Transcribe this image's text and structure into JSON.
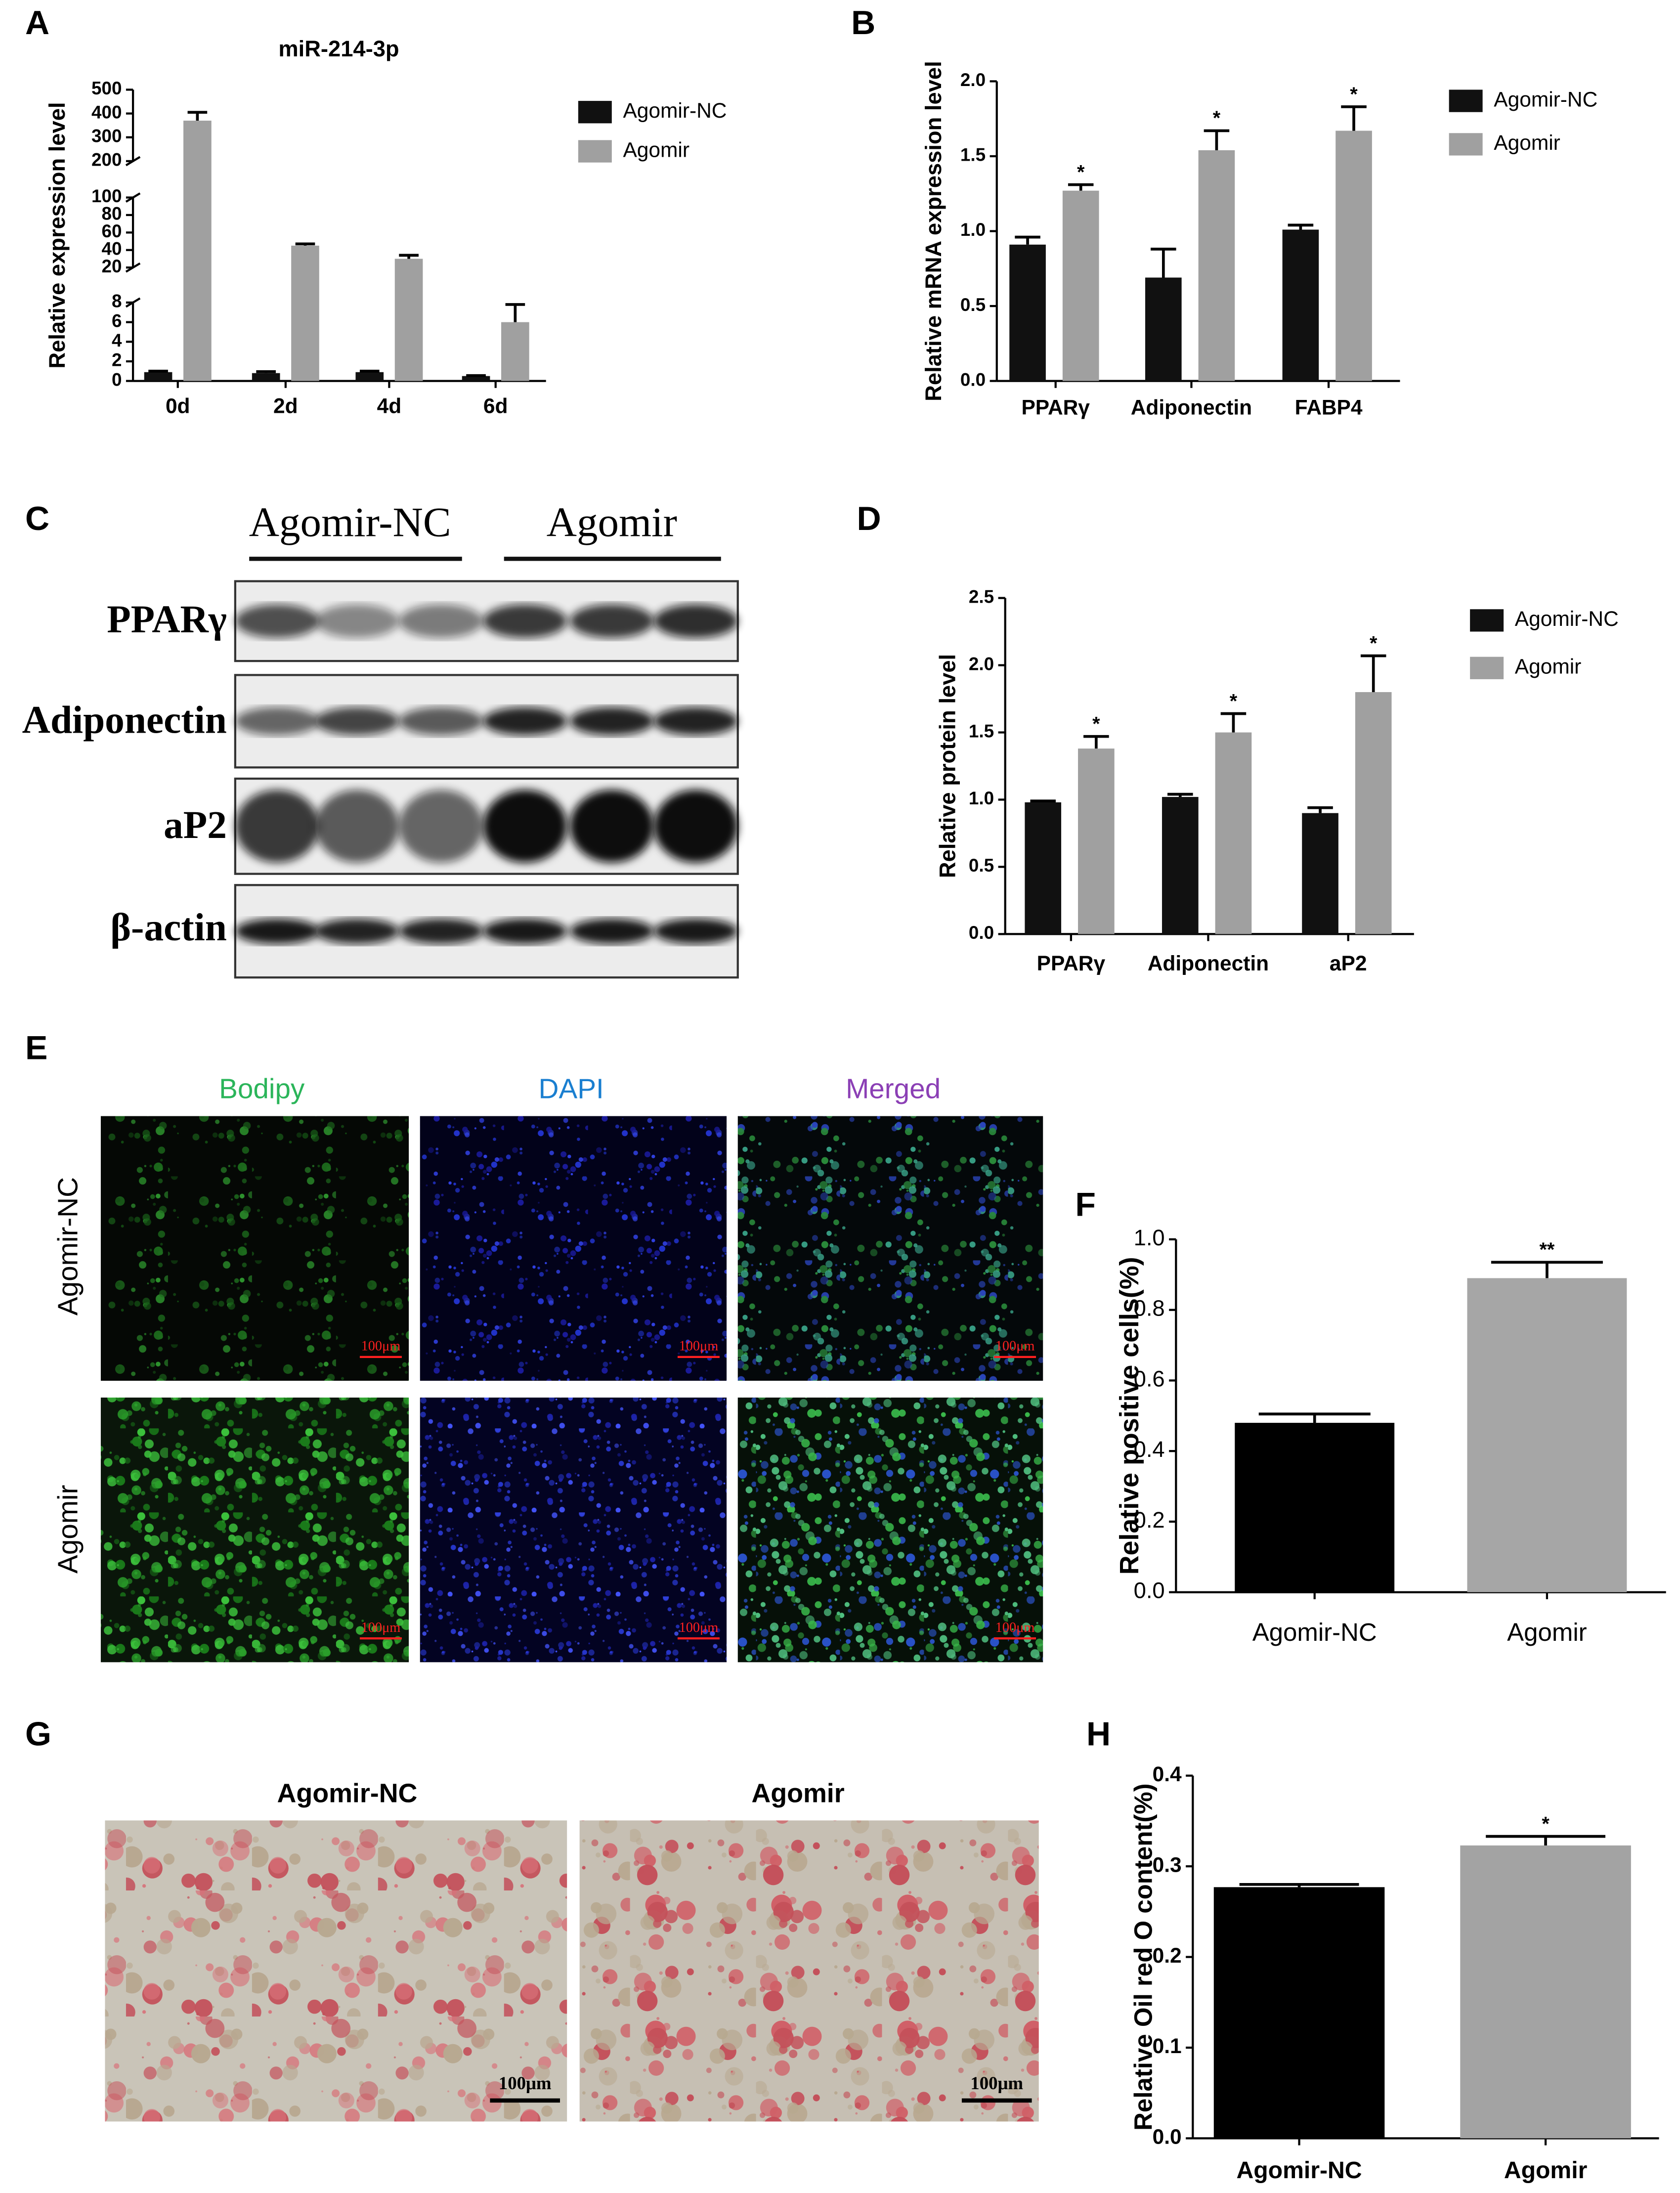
{
  "panel_labels": [
    "A",
    "B",
    "C",
    "D",
    "E",
    "F",
    "G",
    "H"
  ],
  "chart_data": [
    {
      "type": "bar",
      "title": "miR-214-3p",
      "ylabel": "Relative expression level",
      "categories": [
        "0d",
        "2d",
        "4d",
        "6d"
      ],
      "series": [
        {
          "name": "Agomir-NC",
          "color": "#111111",
          "values": [
            0.9,
            0.8,
            0.9,
            0.5
          ],
          "errors": [
            0.1,
            0.15,
            0.1,
            0.05
          ]
        },
        {
          "name": "Agomir",
          "color": "#a0a0a0",
          "values": [
            370,
            45,
            30,
            6
          ],
          "errors": [
            35,
            2,
            4,
            1.8
          ]
        }
      ],
      "y_breaks": [
        {
          "ylim": [
            0,
            8
          ],
          "yticks": [
            0,
            2,
            4,
            6,
            8
          ]
        },
        {
          "ylim": [
            20,
            100
          ],
          "yticks": [
            20,
            40,
            60,
            80,
            100
          ]
        },
        {
          "ylim": [
            200,
            500
          ],
          "yticks": [
            200,
            300,
            400,
            500
          ]
        }
      ]
    },
    {
      "type": "bar",
      "ylabel": "Relative mRNA expression level",
      "categories": [
        "PPARγ",
        "Adiponectin",
        "FABP4"
      ],
      "series": [
        {
          "name": "Agomir-NC",
          "color": "#111111",
          "values": [
            0.91,
            0.69,
            1.01
          ],
          "errors": [
            0.05,
            0.19,
            0.03
          ]
        },
        {
          "name": "Agomir",
          "color": "#a0a0a0",
          "values": [
            1.27,
            1.54,
            1.67
          ],
          "errors": [
            0.04,
            0.13,
            0.16
          ],
          "significance": [
            "*",
            "*",
            "*"
          ]
        }
      ],
      "ylim": [
        0,
        2
      ],
      "yticks": [
        {
          "value": 0,
          "label": "0.0"
        },
        {
          "value": 0.5,
          "label": "0.5"
        },
        {
          "value": 1,
          "label": "1.0"
        },
        {
          "value": 1.5,
          "label": "1.5"
        },
        {
          "value": 2,
          "label": "2.0"
        }
      ]
    },
    {
      "type": "bar",
      "ylabel": "Relative protein level",
      "categories": [
        "PPARγ",
        "Adiponectin",
        "aP2"
      ],
      "series": [
        {
          "name": "Agomir-NC",
          "color": "#111111",
          "values": [
            0.98,
            1.02,
            0.9
          ],
          "errors": [
            0.01,
            0.02,
            0.04
          ]
        },
        {
          "name": "Agomir",
          "color": "#a0a0a0",
          "values": [
            1.38,
            1.5,
            1.8
          ],
          "errors": [
            0.09,
            0.14,
            0.27
          ],
          "significance": [
            "*",
            "*",
            "*"
          ]
        }
      ],
      "ylim": [
        0,
        2.5
      ],
      "yticks": [
        {
          "value": 0,
          "label": "0.0"
        },
        {
          "value": 0.5,
          "label": "0.5"
        },
        {
          "value": 1,
          "label": "1.0"
        },
        {
          "value": 1.5,
          "label": "1.5"
        },
        {
          "value": 2,
          "label": "2.0"
        },
        {
          "value": 2.5,
          "label": "2.5"
        }
      ]
    },
    {
      "type": "bar",
      "ylabel": "Relative positive cells(%)",
      "categories": [
        "Agomir-NC",
        "Agomir"
      ],
      "series": [
        {
          "colors": [
            "#000000",
            "#a6a6a6"
          ],
          "values": [
            0.48,
            0.89
          ],
          "errors": [
            0.025,
            0.045
          ],
          "significance": [
            null,
            "**"
          ]
        }
      ],
      "ylim": [
        0,
        1
      ],
      "yticks": [
        {
          "value": 0,
          "label": "0.0"
        },
        {
          "value": 0.2,
          "label": "0.2"
        },
        {
          "value": 0.4,
          "label": "0.4"
        },
        {
          "value": 0.6,
          "label": "0.6"
        },
        {
          "value": 0.8,
          "label": "0.8"
        },
        {
          "value": 1,
          "label": "1.0"
        }
      ]
    },
    {
      "type": "bar",
      "ylabel": "Relative Oil red O content(%)",
      "categories": [
        "Agomir-NC",
        "Agomir"
      ],
      "series": [
        {
          "colors": [
            "#000000",
            "#a3a3a3"
          ],
          "values": [
            0.277,
            0.323
          ],
          "errors": [
            0.003,
            0.01
          ],
          "significance": [
            null,
            "*"
          ]
        }
      ],
      "ylim": [
        0,
        0.4
      ],
      "yticks": [
        {
          "value": 0,
          "label": "0.0"
        },
        {
          "value": 0.1,
          "label": "0.1"
        },
        {
          "value": 0.2,
          "label": "0.2"
        },
        {
          "value": 0.3,
          "label": "0.3"
        },
        {
          "value": 0.4,
          "label": "0.4"
        }
      ]
    }
  ],
  "blot": {
    "groups": [
      "Agomir-NC",
      "Agomir"
    ],
    "proteins": [
      "PPARγ",
      "Adiponectin",
      "aP2",
      "β-actin"
    ]
  },
  "staining": {
    "channels": [
      "Bodipy",
      "DAPI",
      "Merged"
    ],
    "groups": [
      "Agomir-NC",
      "Agomir"
    ],
    "scale_bar": "100μm"
  },
  "oil_red": {
    "groups": [
      "Agomir-NC",
      "Agomir"
    ],
    "scale_bar": "100μm"
  }
}
